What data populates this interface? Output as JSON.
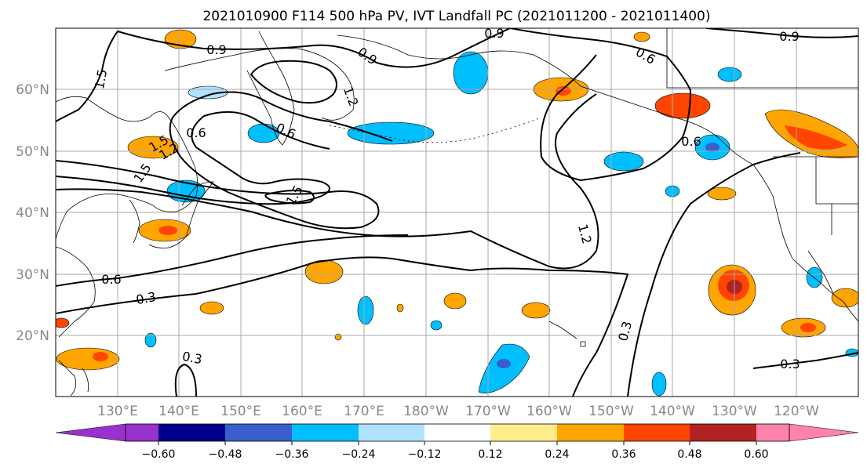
{
  "title": "2021010900 F114 500 hPa PV, IVT Landfall PC (2021011200 - 2021011400)",
  "lat_labels": [
    "60°N",
    "50°N",
    "40°N",
    "30°N",
    "20°N"
  ],
  "lon_labels": [
    "130°E",
    "140°E",
    "150°E",
    "160°E",
    "170°E",
    "180°W",
    "170°W",
    "160°W",
    "150°W",
    "140°W",
    "130°W",
    "120°W"
  ],
  "contour_labels": [
    "0.9",
    "0.9",
    "0.9",
    "0.9",
    "0.6",
    "1.5",
    "1.5",
    "1.2",
    "0.6",
    "1.2",
    "1.5",
    "1.5",
    "1.2",
    "0.6",
    "0.6",
    "0.3",
    "0.3",
    "0.3",
    "0.3",
    "0.6"
  ],
  "colorbar": {
    "colors": [
      "#9932cc",
      "#00008b",
      "#3a5fcd",
      "#00bfff",
      "#b0e2ff",
      "#ffffff",
      "#ffec8b",
      "#ffa500",
      "#ff4500",
      "#b22222",
      "#ff82ab"
    ],
    "tick_labels": [
      "−0.60",
      "−0.48",
      "−0.36",
      "−0.24",
      "−0.12",
      "0.12",
      "0.24",
      "0.36",
      "0.48",
      "0.60"
    ]
  },
  "colors": {
    "contour": "#000000",
    "grid": "#a9a9a9",
    "axis_text": "#888888"
  }
}
